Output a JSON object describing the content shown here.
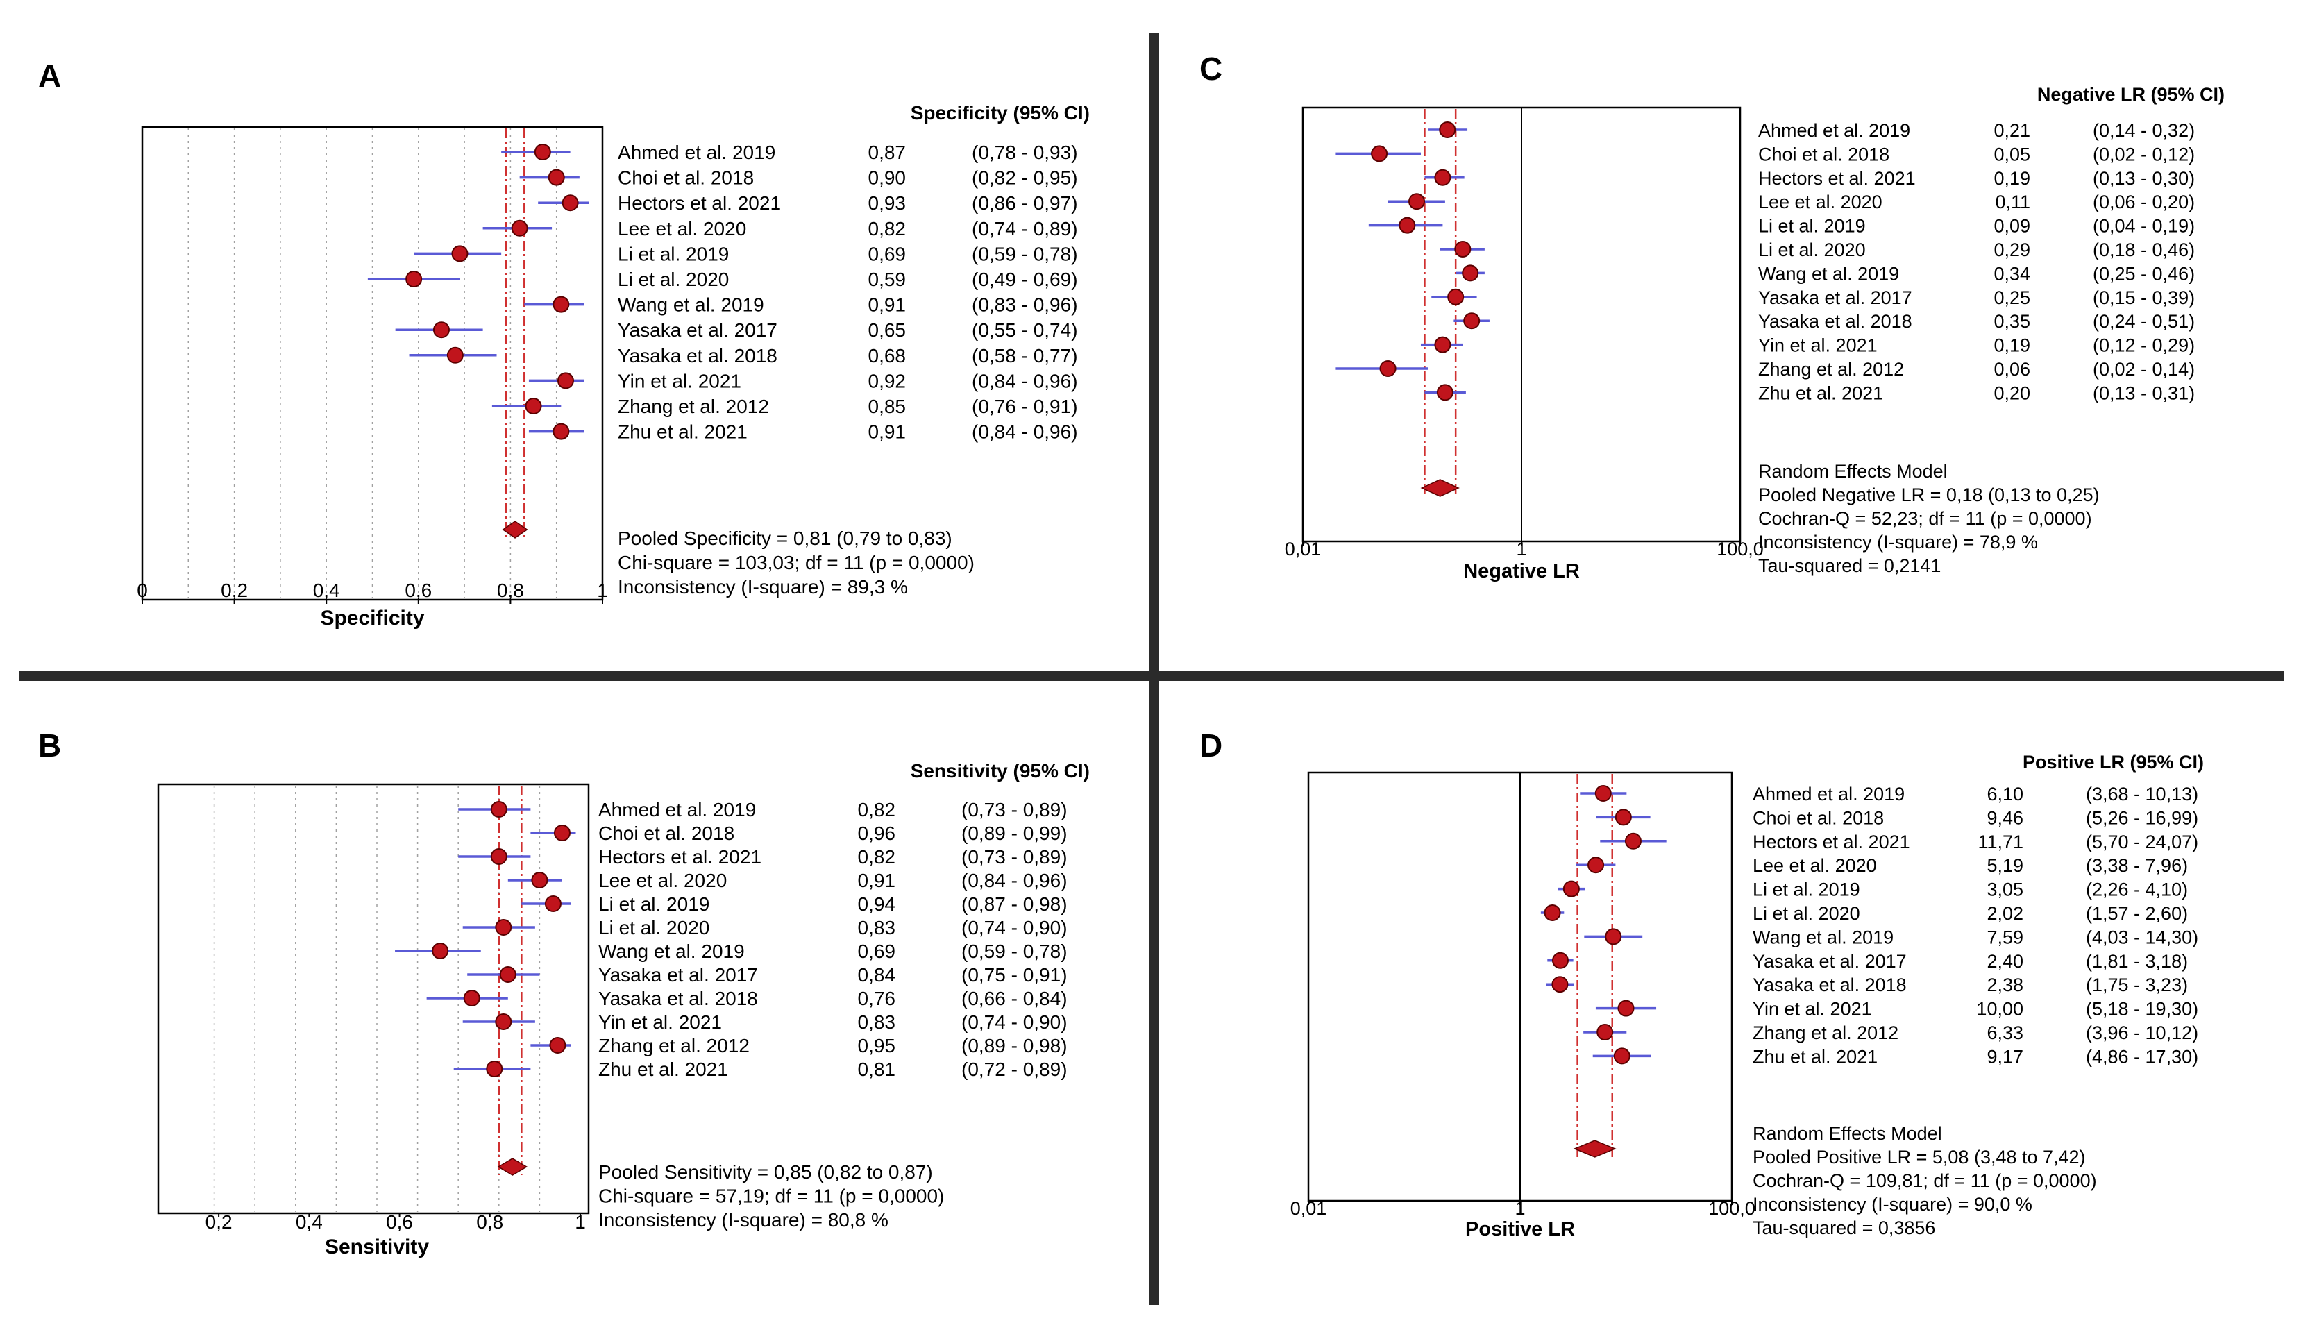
{
  "colors": {
    "divider": "#2b2b2b",
    "point": "#c0141c",
    "point_stroke": "#5a0000",
    "ci_line": "#5a5ad6",
    "pooled_line": "#d03030",
    "grid": "#a0a0a0"
  },
  "chart_data": [
    {
      "panel": "A",
      "type": "forest",
      "scale": "linear",
      "xlabel": "Specificity",
      "xlim": [
        0,
        1
      ],
      "ticks": [
        0,
        0.2,
        0.4,
        0.6,
        0.8,
        1
      ],
      "tick_labels": [
        "0",
        "0,2",
        "0,4",
        "0,6",
        "0,8",
        "1"
      ],
      "column_header": "Specificity (95% CI)",
      "studies": [
        {
          "label": "Ahmed et al. 2019",
          "est": 0.87,
          "lo": 0.78,
          "hi": 0.93,
          "value_text": "0,87",
          "ci_text": "(0,78 - 0,93)"
        },
        {
          "label": "Choi et al. 2018",
          "est": 0.9,
          "lo": 0.82,
          "hi": 0.95,
          "value_text": "0,90",
          "ci_text": "(0,82 - 0,95)"
        },
        {
          "label": "Hectors et al. 2021",
          "est": 0.93,
          "lo": 0.86,
          "hi": 0.97,
          "value_text": "0,93",
          "ci_text": "(0,86 - 0,97)"
        },
        {
          "label": "Lee et al. 2020",
          "est": 0.82,
          "lo": 0.74,
          "hi": 0.89,
          "value_text": "0,82",
          "ci_text": "(0,74 - 0,89)"
        },
        {
          "label": "Li et al. 2019",
          "est": 0.69,
          "lo": 0.59,
          "hi": 0.78,
          "value_text": "0,69",
          "ci_text": "(0,59 - 0,78)"
        },
        {
          "label": "Li et al. 2020",
          "est": 0.59,
          "lo": 0.49,
          "hi": 0.69,
          "value_text": "0,59",
          "ci_text": "(0,49 - 0,69)"
        },
        {
          "label": "Wang et al. 2019",
          "est": 0.91,
          "lo": 0.83,
          "hi": 0.96,
          "value_text": "0,91",
          "ci_text": "(0,83 - 0,96)"
        },
        {
          "label": "Yasaka et al. 2017",
          "est": 0.65,
          "lo": 0.55,
          "hi": 0.74,
          "value_text": "0,65",
          "ci_text": "(0,55 - 0,74)"
        },
        {
          "label": "Yasaka et al. 2018",
          "est": 0.68,
          "lo": 0.58,
          "hi": 0.77,
          "value_text": "0,68",
          "ci_text": "(0,58 - 0,77)"
        },
        {
          "label": "Yin et al. 2021",
          "est": 0.92,
          "lo": 0.84,
          "hi": 0.96,
          "value_text": "0,92",
          "ci_text": "(0,84 - 0,96)"
        },
        {
          "label": "Zhang et al. 2012",
          "est": 0.85,
          "lo": 0.76,
          "hi": 0.91,
          "value_text": "0,85",
          "ci_text": "(0,76 - 0,91)"
        },
        {
          "label": "Zhu et al. 2021",
          "est": 0.91,
          "lo": 0.84,
          "hi": 0.96,
          "value_text": "0,91",
          "ci_text": "(0,84 - 0,96)"
        }
      ],
      "pooled": {
        "est": 0.81,
        "lo": 0.79,
        "hi": 0.83
      },
      "summary": [
        "Pooled Specificity = 0,81 (0,79 to 0,83)",
        "Chi-square = 103,03; df =  11 (p = 0,0000)",
        "Inconsistency (I-square) = 89,3 %"
      ]
    },
    {
      "panel": "B",
      "type": "forest",
      "scale": "linear",
      "xlabel": "Sensitivity",
      "xlim": [
        0.1,
        1
      ],
      "ticks": [
        0.2,
        0.4,
        0.6,
        0.8,
        1
      ],
      "tick_labels": [
        "0,2",
        "0,4",
        "0,6",
        "0,8",
        "1"
      ],
      "column_header": "Sensitivity (95% CI)",
      "studies": [
        {
          "label": "Ahmed et al. 2019",
          "est": 0.82,
          "lo": 0.73,
          "hi": 0.89,
          "value_text": "0,82",
          "ci_text": "(0,73 - 0,89)"
        },
        {
          "label": "Choi et al. 2018",
          "est": 0.96,
          "lo": 0.89,
          "hi": 0.99,
          "value_text": "0,96",
          "ci_text": "(0,89 - 0,99)"
        },
        {
          "label": "Hectors et al. 2021",
          "est": 0.82,
          "lo": 0.73,
          "hi": 0.89,
          "value_text": "0,82",
          "ci_text": "(0,73 - 0,89)"
        },
        {
          "label": "Lee et al. 2020",
          "est": 0.91,
          "lo": 0.84,
          "hi": 0.96,
          "value_text": "0,91",
          "ci_text": "(0,84 - 0,96)"
        },
        {
          "label": "Li et al. 2019",
          "est": 0.94,
          "lo": 0.87,
          "hi": 0.98,
          "value_text": "0,94",
          "ci_text": "(0,87 - 0,98)"
        },
        {
          "label": "Li et al. 2020",
          "est": 0.83,
          "lo": 0.74,
          "hi": 0.9,
          "value_text": "0,83",
          "ci_text": "(0,74 - 0,90)"
        },
        {
          "label": "Wang et al. 2019",
          "est": 0.69,
          "lo": 0.59,
          "hi": 0.78,
          "value_text": "0,69",
          "ci_text": "(0,59 - 0,78)"
        },
        {
          "label": "Yasaka et al. 2017",
          "est": 0.84,
          "lo": 0.75,
          "hi": 0.91,
          "value_text": "0,84",
          "ci_text": "(0,75 - 0,91)"
        },
        {
          "label": "Yasaka et al. 2018",
          "est": 0.76,
          "lo": 0.66,
          "hi": 0.84,
          "value_text": "0,76",
          "ci_text": "(0,66 - 0,84)"
        },
        {
          "label": "Yin et al. 2021",
          "est": 0.83,
          "lo": 0.74,
          "hi": 0.9,
          "value_text": "0,83",
          "ci_text": "(0,74 - 0,90)"
        },
        {
          "label": "Zhang et al. 2012",
          "est": 0.95,
          "lo": 0.89,
          "hi": 0.98,
          "value_text": "0,95",
          "ci_text": "(0,89 - 0,98)"
        },
        {
          "label": "Zhu et al. 2021",
          "est": 0.81,
          "lo": 0.72,
          "hi": 0.89,
          "value_text": "0,81",
          "ci_text": "(0,72 - 0,89)"
        }
      ],
      "pooled": {
        "est": 0.85,
        "lo": 0.82,
        "hi": 0.87
      },
      "summary": [
        "Pooled Sensitivity = 0,85 (0,82 to 0,87)",
        "Chi-square = 57,19; df =  11 (p = 0,0000)",
        "Inconsistency (I-square) = 80,8 %"
      ]
    },
    {
      "panel": "C",
      "type": "forest",
      "scale": "log",
      "xlabel": "Negative LR",
      "xlim": [
        0.01,
        100
      ],
      "ticks": [
        0.01,
        1,
        100
      ],
      "tick_labels": [
        "0,01",
        "1",
        "100,0"
      ],
      "reference_line": 1,
      "column_header": "Negative LR (95% CI)",
      "studies": [
        {
          "label": "Ahmed et al. 2019",
          "est": 0.21,
          "lo": 0.14,
          "hi": 0.32,
          "value_text": "0,21",
          "ci_text": "(0,14 - 0,32)"
        },
        {
          "label": "Choi et al. 2018",
          "est": 0.05,
          "lo": 0.02,
          "hi": 0.12,
          "value_text": "0,05",
          "ci_text": "(0,02 - 0,12)"
        },
        {
          "label": "Hectors et al. 2021",
          "est": 0.19,
          "lo": 0.13,
          "hi": 0.3,
          "value_text": "0,19",
          "ci_text": "(0,13 - 0,30)"
        },
        {
          "label": "Lee et al. 2020",
          "est": 0.11,
          "lo": 0.06,
          "hi": 0.2,
          "value_text": "0,11",
          "ci_text": "(0,06 - 0,20)"
        },
        {
          "label": "Li et al. 2019",
          "est": 0.09,
          "lo": 0.04,
          "hi": 0.19,
          "value_text": "0,09",
          "ci_text": "(0,04 - 0,19)"
        },
        {
          "label": "Li et al. 2020",
          "est": 0.29,
          "lo": 0.18,
          "hi": 0.46,
          "value_text": "0,29",
          "ci_text": "(0,18 - 0,46)"
        },
        {
          "label": "Wang et al. 2019",
          "est": 0.34,
          "lo": 0.25,
          "hi": 0.46,
          "value_text": "0,34",
          "ci_text": "(0,25 - 0,46)"
        },
        {
          "label": "Yasaka et al. 2017",
          "est": 0.25,
          "lo": 0.15,
          "hi": 0.39,
          "value_text": "0,25",
          "ci_text": "(0,15 - 0,39)"
        },
        {
          "label": "Yasaka et al. 2018",
          "est": 0.35,
          "lo": 0.24,
          "hi": 0.51,
          "value_text": "0,35",
          "ci_text": "(0,24 - 0,51)"
        },
        {
          "label": "Yin et al. 2021",
          "est": 0.19,
          "lo": 0.12,
          "hi": 0.29,
          "value_text": "0,19",
          "ci_text": "(0,12 - 0,29)"
        },
        {
          "label": "Zhang et al. 2012",
          "est": 0.06,
          "lo": 0.02,
          "hi": 0.14,
          "value_text": "0,06",
          "ci_text": "(0,02 - 0,14)"
        },
        {
          "label": "Zhu et al. 2021",
          "est": 0.2,
          "lo": 0.13,
          "hi": 0.31,
          "value_text": "0,20",
          "ci_text": "(0,13 - 0,31)"
        }
      ],
      "pooled": {
        "est": 0.18,
        "lo": 0.13,
        "hi": 0.25
      },
      "summary": [
        "Random Effects Model",
        "Pooled Negative LR = 0,18 (0,13 to 0,25)",
        "Cochran-Q = 52,23; df =  11 (p = 0,0000)",
        "Inconsistency (I-square) = 78,9 %",
        "Tau-squared = 0,2141"
      ]
    },
    {
      "panel": "D",
      "type": "forest",
      "scale": "log",
      "xlabel": "Positive LR",
      "xlim": [
        0.01,
        100
      ],
      "ticks": [
        0.01,
        1,
        100
      ],
      "tick_labels": [
        "0,01",
        "1",
        "100,0"
      ],
      "reference_line": 1,
      "column_header": "Positive LR (95% CI)",
      "studies": [
        {
          "label": "Ahmed et al. 2019",
          "est": 6.1,
          "lo": 3.68,
          "hi": 10.13,
          "value_text": "6,10",
          "ci_text": "(3,68 - 10,13)"
        },
        {
          "label": "Choi et al. 2018",
          "est": 9.46,
          "lo": 5.26,
          "hi": 16.99,
          "value_text": "9,46",
          "ci_text": "(5,26 - 16,99)"
        },
        {
          "label": "Hectors et al. 2021",
          "est": 11.71,
          "lo": 5.7,
          "hi": 24.07,
          "value_text": "11,71",
          "ci_text": "(5,70 - 24,07)"
        },
        {
          "label": "Lee et al. 2020",
          "est": 5.19,
          "lo": 3.38,
          "hi": 7.96,
          "value_text": "5,19",
          "ci_text": "(3,38 - 7,96)"
        },
        {
          "label": "Li et al. 2019",
          "est": 3.05,
          "lo": 2.26,
          "hi": 4.1,
          "value_text": "3,05",
          "ci_text": "(2,26 - 4,10)"
        },
        {
          "label": "Li et al. 2020",
          "est": 2.02,
          "lo": 1.57,
          "hi": 2.6,
          "value_text": "2,02",
          "ci_text": "(1,57 - 2,60)"
        },
        {
          "label": "Wang et al. 2019",
          "est": 7.59,
          "lo": 4.03,
          "hi": 14.3,
          "value_text": "7,59",
          "ci_text": "(4,03 - 14,30)"
        },
        {
          "label": "Yasaka et al. 2017",
          "est": 2.4,
          "lo": 1.81,
          "hi": 3.18,
          "value_text": "2,40",
          "ci_text": "(1,81 - 3,18)"
        },
        {
          "label": "Yasaka et al. 2018",
          "est": 2.38,
          "lo": 1.75,
          "hi": 3.23,
          "value_text": "2,38",
          "ci_text": "(1,75 - 3,23)"
        },
        {
          "label": "Yin et al. 2021",
          "est": 10.0,
          "lo": 5.18,
          "hi": 19.3,
          "value_text": "10,00",
          "ci_text": "(5,18 - 19,30)"
        },
        {
          "label": "Zhang et al. 2012",
          "est": 6.33,
          "lo": 3.96,
          "hi": 10.12,
          "value_text": "6,33",
          "ci_text": "(3,96 - 10,12)"
        },
        {
          "label": "Zhu et al. 2021",
          "est": 9.17,
          "lo": 4.86,
          "hi": 17.3,
          "value_text": "9,17",
          "ci_text": "(4,86 - 17,30)"
        }
      ],
      "pooled": {
        "est": 5.08,
        "lo": 3.48,
        "hi": 7.42
      },
      "summary": [
        "Random Effects Model",
        "Pooled Positive LR = 5,08 (3,48 to 7,42)",
        "Cochran-Q = 109,81; df =  11 (p = 0,0000)",
        "Inconsistency (I-square) = 90,0 %",
        "Tau-squared = 0,3856"
      ]
    }
  ]
}
